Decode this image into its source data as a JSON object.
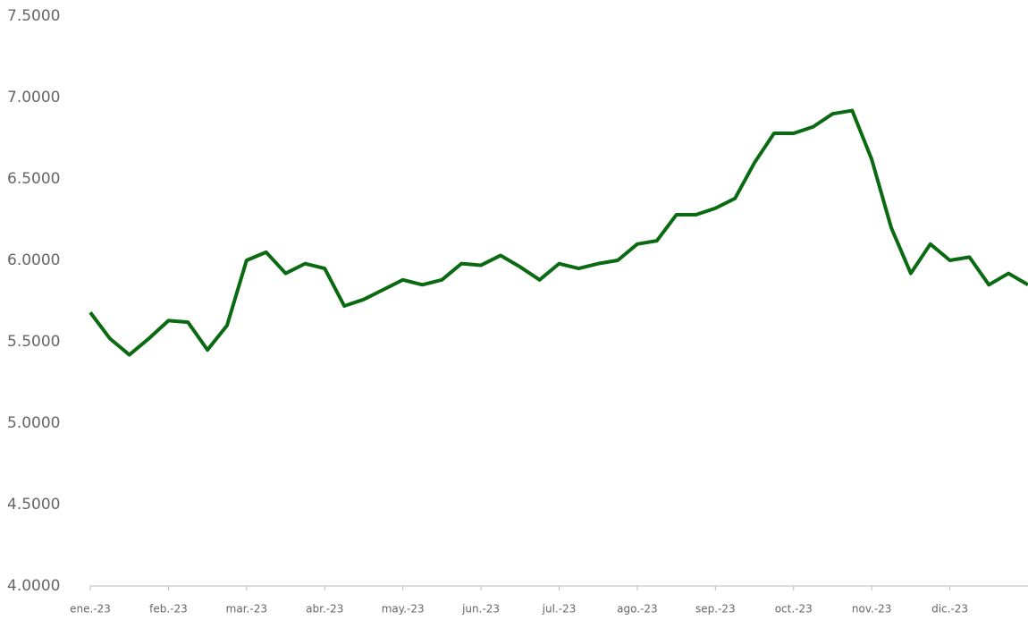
{
  "chart_data": {
    "type": "line",
    "categories": [
      "ene.-23",
      null,
      null,
      null,
      "feb.-23",
      null,
      null,
      null,
      "mar.-23",
      null,
      null,
      null,
      "abr.-23",
      null,
      null,
      null,
      "may.-23",
      null,
      null,
      null,
      "jun.-23",
      null,
      null,
      null,
      "jul.-23",
      null,
      null,
      null,
      "ago.-23",
      null,
      null,
      null,
      "sep.-23",
      null,
      null,
      null,
      "oct.-23",
      null,
      null,
      null,
      "nov.-23",
      null,
      null,
      null,
      "dic.-23",
      null,
      null,
      null,
      null
    ],
    "series": [
      {
        "color": "#0a6a12",
        "values": [
          5.68,
          5.52,
          5.42,
          5.52,
          5.63,
          5.62,
          5.45,
          5.6,
          6.0,
          6.05,
          5.92,
          5.98,
          5.95,
          5.72,
          5.76,
          5.82,
          5.88,
          5.85,
          5.88,
          5.98,
          5.97,
          6.03,
          5.96,
          5.88,
          5.98,
          5.95,
          5.98,
          6.0,
          6.1,
          6.12,
          6.28,
          6.28,
          6.32,
          6.38,
          6.6,
          6.78,
          6.78,
          6.82,
          6.9,
          6.92,
          6.62,
          6.2,
          5.92,
          6.1,
          6.0,
          6.02,
          5.85,
          5.92,
          5.85
        ]
      }
    ],
    "ylim": [
      4,
      7.5
    ],
    "yticks": [
      {
        "value": 4,
        "label": "4.0000"
      },
      {
        "value": 4.5,
        "label": "4.5000"
      },
      {
        "value": 5,
        "label": "5.0000"
      },
      {
        "value": 5.5,
        "label": "5.5000"
      },
      {
        "value": 6,
        "label": "6.0000"
      },
      {
        "value": 6.5,
        "label": "6.5000"
      },
      {
        "value": 7,
        "label": "7.0000"
      },
      {
        "value": 7.5,
        "label": "7.5000"
      }
    ],
    "grid": false
  }
}
